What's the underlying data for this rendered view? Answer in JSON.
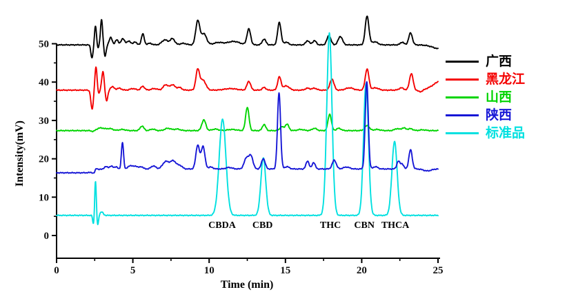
{
  "chart_data": {
    "type": "line",
    "title": "",
    "xlabel": "Time (min)",
    "ylabel": "Intensity(mV)",
    "axes": {
      "xlim": [
        0,
        25
      ],
      "ylim": [
        0,
        50
      ],
      "xticks": [
        0,
        5,
        10,
        15,
        20,
        25
      ],
      "xminor": [
        2.5,
        7.5,
        12.5,
        17.5,
        22.5
      ],
      "yticks": [
        0,
        10,
        20,
        30,
        40,
        50
      ],
      "yminor": [
        5,
        15,
        25,
        35,
        45
      ],
      "grid": false,
      "legend_position": "right"
    },
    "peak_labels": [
      {
        "text": "CBDA",
        "t": 10.85,
        "y_mv": 2.0
      },
      {
        "text": "CBD",
        "t": 13.5,
        "y_mv": 2.0
      },
      {
        "text": "THC",
        "t": 17.95,
        "y_mv": 2.0
      },
      {
        "text": "CBN",
        "t": 20.17,
        "y_mv": 2.0
      },
      {
        "text": "THCA",
        "t": 22.2,
        "y_mv": 2.0
      }
    ],
    "series": [
      {
        "id": "guangxi",
        "name": "广西",
        "color": "#000000",
        "z": 0,
        "baseline": 49.7,
        "seed": 1,
        "steps": [],
        "peaks": [
          [
            2.32,
            -3.4,
            0.07
          ],
          [
            2.55,
            5.0,
            0.06
          ],
          [
            2.73,
            -0.8,
            0.05
          ],
          [
            2.95,
            6.6,
            0.07
          ],
          [
            3.18,
            -3.0,
            0.07
          ],
          [
            3.55,
            1.9,
            0.1
          ],
          [
            3.95,
            1.3,
            0.1
          ],
          [
            4.35,
            1.6,
            0.12
          ],
          [
            4.75,
            1.0,
            0.12
          ],
          [
            5.15,
            0.8,
            0.1
          ],
          [
            5.65,
            2.9,
            0.09
          ],
          [
            6.1,
            0.4,
            0.15
          ],
          [
            7.1,
            1.3,
            0.2
          ],
          [
            7.6,
            1.6,
            0.15
          ],
          [
            8.3,
            0.4,
            0.2
          ],
          [
            9.25,
            6.2,
            0.13
          ],
          [
            9.65,
            2.9,
            0.18
          ],
          [
            10.6,
            0.6,
            0.3
          ],
          [
            11.6,
            0.9,
            0.4
          ],
          [
            12.6,
            4.1,
            0.12
          ],
          [
            13.6,
            1.5,
            0.12
          ],
          [
            14.6,
            5.9,
            0.11
          ],
          [
            15.05,
            0.7,
            0.15
          ],
          [
            16.45,
            1.1,
            0.12
          ],
          [
            16.9,
            1.1,
            0.12
          ],
          [
            17.85,
            2.4,
            0.13
          ],
          [
            18.6,
            2.2,
            0.14
          ],
          [
            20.35,
            7.5,
            0.12
          ],
          [
            20.85,
            0.8,
            0.2
          ],
          [
            22.65,
            0.7,
            0.12
          ],
          [
            23.2,
            3.1,
            0.12
          ],
          [
            25.2,
            -1.1,
            0.5
          ]
        ]
      },
      {
        "id": "heilongjiang",
        "name": "黑龙江",
        "color": "#f40000",
        "z": 1,
        "baseline": 37.9,
        "seed": 2,
        "steps": [],
        "peaks": [
          [
            2.33,
            -5.0,
            0.08
          ],
          [
            2.58,
            6.0,
            0.07
          ],
          [
            2.76,
            -1.0,
            0.05
          ],
          [
            3.04,
            4.8,
            0.08
          ],
          [
            3.28,
            -2.8,
            0.08
          ],
          [
            3.65,
            0.9,
            0.12
          ],
          [
            4.1,
            0.5,
            0.15
          ],
          [
            5.0,
            0.4,
            0.18
          ],
          [
            5.65,
            1.0,
            0.12
          ],
          [
            6.4,
            0.4,
            0.2
          ],
          [
            7.15,
            1.4,
            0.16
          ],
          [
            7.6,
            1.4,
            0.16
          ],
          [
            8.05,
            0.7,
            0.15
          ],
          [
            9.25,
            5.2,
            0.12
          ],
          [
            9.6,
            2.6,
            0.18
          ],
          [
            11.4,
            0.4,
            0.4
          ],
          [
            12.6,
            2.3,
            0.12
          ],
          [
            13.6,
            0.7,
            0.12
          ],
          [
            14.6,
            3.4,
            0.11
          ],
          [
            15.05,
            1.1,
            0.2
          ],
          [
            16.45,
            0.5,
            0.15
          ],
          [
            16.9,
            0.5,
            0.15
          ],
          [
            18.05,
            2.9,
            0.13
          ],
          [
            19.2,
            0.6,
            0.25
          ],
          [
            20.35,
            5.5,
            0.12
          ],
          [
            20.9,
            0.6,
            0.2
          ],
          [
            22.6,
            0.6,
            0.15
          ],
          [
            23.25,
            4.3,
            0.12
          ],
          [
            23.85,
            -0.5,
            0.15
          ],
          [
            25.4,
            2.8,
            0.6
          ]
        ]
      },
      {
        "id": "shanxi",
        "name": "山西",
        "color": "#00d400",
        "z": 2,
        "baseline": 27.35,
        "seed": 3,
        "steps": [],
        "peaks": [
          [
            2.4,
            -0.3,
            0.1
          ],
          [
            2.9,
            0.7,
            0.25
          ],
          [
            3.5,
            0.5,
            0.2
          ],
          [
            4.3,
            0.3,
            0.2
          ],
          [
            5.6,
            1.2,
            0.12
          ],
          [
            6.3,
            0.4,
            0.15
          ],
          [
            7.3,
            0.6,
            0.2
          ],
          [
            7.9,
            0.4,
            0.2
          ],
          [
            9.65,
            2.8,
            0.13
          ],
          [
            10.4,
            0.4,
            0.2
          ],
          [
            11.5,
            0.3,
            0.3
          ],
          [
            12.5,
            6.1,
            0.11
          ],
          [
            13.6,
            1.6,
            0.11
          ],
          [
            14.75,
            1.0,
            0.12
          ],
          [
            15.1,
            1.7,
            0.12
          ],
          [
            16.0,
            0.3,
            0.2
          ],
          [
            16.9,
            0.6,
            0.15
          ],
          [
            17.9,
            4.3,
            0.11
          ],
          [
            18.5,
            0.6,
            0.15
          ],
          [
            20.35,
            1.3,
            0.15
          ],
          [
            21.0,
            0.3,
            0.2
          ],
          [
            22.3,
            0.5,
            0.15
          ],
          [
            22.75,
            0.7,
            0.15
          ],
          [
            23.2,
            0.5,
            0.15
          ],
          [
            24.0,
            0.2,
            0.2
          ]
        ]
      },
      {
        "id": "shaanxi",
        "name": "陕西",
        "color": "#1616d6",
        "z": 4,
        "baseline": 16.35,
        "seed": 5,
        "steps": [
          [
            2.55,
            1.0,
            0.15
          ]
        ],
        "peaks": [
          [
            2.45,
            -0.5,
            0.08
          ],
          [
            2.6,
            0.6,
            0.08
          ],
          [
            3.25,
            0.6,
            0.12
          ],
          [
            3.6,
            0.7,
            0.12
          ],
          [
            3.9,
            0.5,
            0.1
          ],
          [
            4.32,
            6.9,
            0.07
          ],
          [
            4.85,
            0.9,
            0.15
          ],
          [
            5.2,
            0.7,
            0.12
          ],
          [
            5.55,
            0.6,
            0.12
          ],
          [
            6.35,
            0.8,
            0.15
          ],
          [
            7.15,
            1.9,
            0.2
          ],
          [
            7.65,
            2.1,
            0.2
          ],
          [
            8.1,
            0.8,
            0.15
          ],
          [
            9.25,
            6.2,
            0.12
          ],
          [
            9.6,
            5.9,
            0.12
          ],
          [
            10.1,
            0.5,
            0.15
          ],
          [
            11.3,
            0.4,
            0.2
          ],
          [
            12.45,
            2.9,
            0.15
          ],
          [
            12.75,
            3.2,
            0.13
          ],
          [
            13.55,
            2.7,
            0.12
          ],
          [
            14.58,
            19.9,
            0.1
          ],
          [
            15.1,
            0.6,
            0.15
          ],
          [
            16.45,
            2.1,
            0.1
          ],
          [
            16.85,
            1.7,
            0.1
          ],
          [
            18.2,
            2.3,
            0.13
          ],
          [
            19.0,
            0.5,
            0.2
          ],
          [
            20.33,
            22.7,
            0.1
          ],
          [
            20.9,
            0.6,
            0.15
          ],
          [
            22.4,
            2.0,
            0.1
          ],
          [
            22.65,
            1.3,
            0.1
          ],
          [
            23.2,
            5.0,
            0.11
          ],
          [
            24.3,
            -0.5,
            0.25
          ]
        ]
      },
      {
        "id": "standard",
        "name": "标准品",
        "color": "#00e0e0",
        "z": 3,
        "baseline": 5.25,
        "seed": 4,
        "steps": [],
        "peaks": [
          [
            2.42,
            -2.4,
            0.05
          ],
          [
            2.55,
            9.0,
            0.05
          ],
          [
            2.7,
            -2.6,
            0.05
          ],
          [
            2.95,
            0.9,
            0.1
          ],
          [
            10.88,
            25.1,
            0.22
          ],
          [
            13.55,
            15.0,
            0.16
          ],
          [
            17.88,
            47.5,
            0.17
          ],
          [
            20.28,
            34.5,
            0.16
          ],
          [
            22.15,
            19.3,
            0.17
          ]
        ]
      }
    ]
  }
}
